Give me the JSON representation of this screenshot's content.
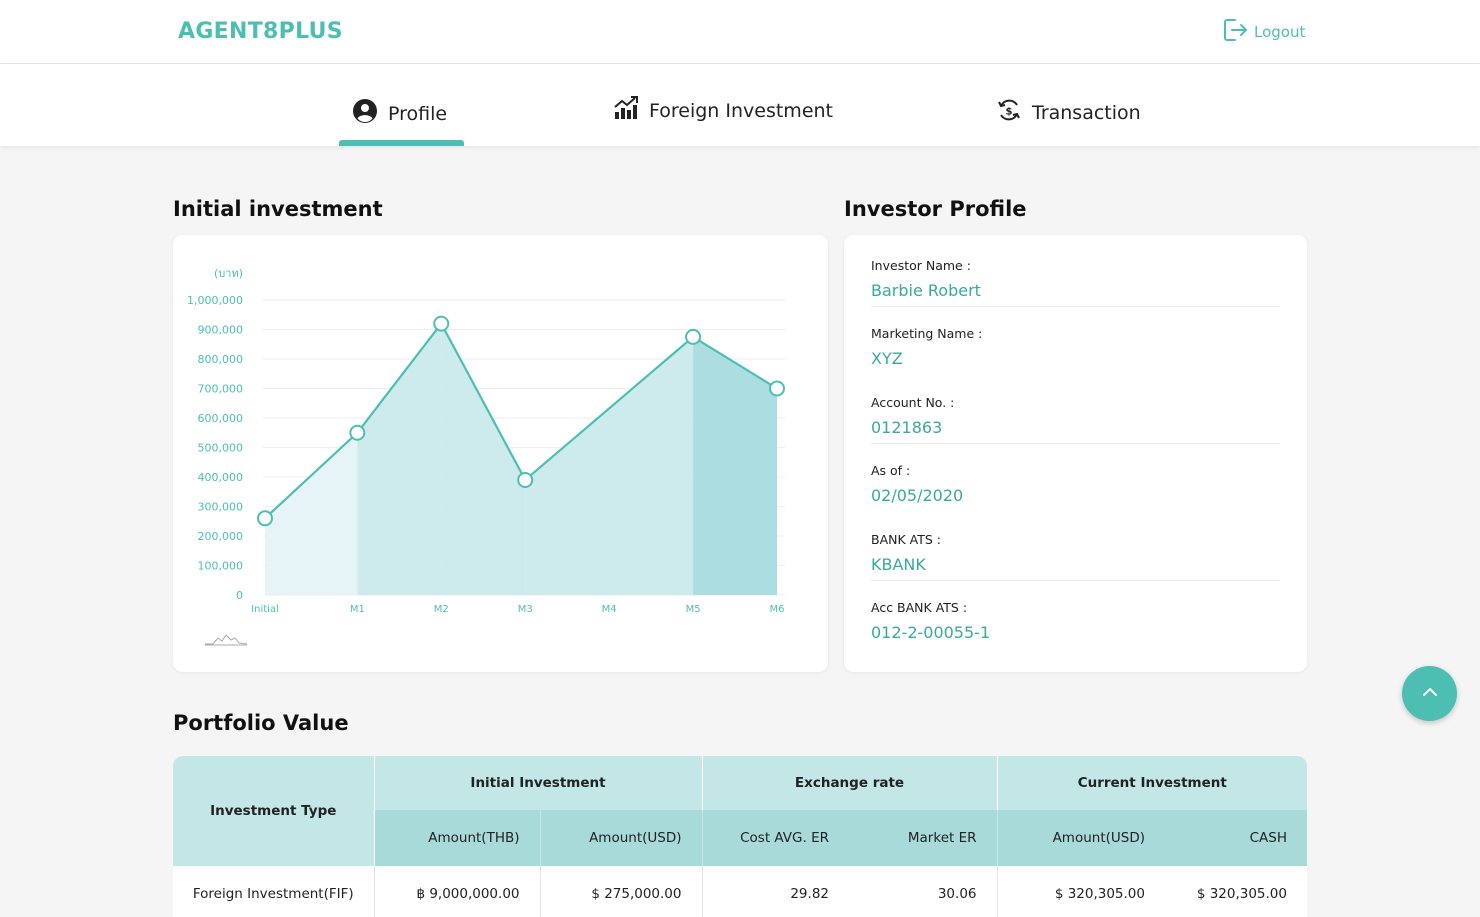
{
  "header": {
    "logo": "AGENT8PLUS",
    "logout_label": "Logout"
  },
  "tabs": [
    {
      "label": "Profile",
      "icon": "user-circle-icon",
      "active": true
    },
    {
      "label": "Foreign Investment",
      "icon": "growth-chart-icon",
      "active": false
    },
    {
      "label": "Transaction",
      "icon": "currency-exchange-icon",
      "active": false
    }
  ],
  "sections": {
    "initial_investment": "Initial investment",
    "investor_profile": "Investor Profile",
    "portfolio_value": "Portfolio Value"
  },
  "chart_data": {
    "type": "area",
    "unit_label": "(บาท)",
    "categories": [
      "Initial",
      "M1",
      "M2",
      "M3",
      "M4",
      "M5",
      "M6"
    ],
    "x": [
      0,
      1.1,
      2.1,
      3.1,
      4.1,
      5.1,
      6.1
    ],
    "values": [
      260000,
      550000,
      920000,
      390000,
      null,
      875000,
      700000
    ],
    "y_ticks": [
      "0",
      "100,000",
      "200,000",
      "300,000",
      "400,000",
      "500,000",
      "600,000",
      "700,000",
      "800,000",
      "900,000",
      "1,000,000"
    ],
    "ylim": [
      0,
      1000000
    ],
    "grid": true,
    "legend": "none",
    "color": "#4dbfb2"
  },
  "profile": {
    "fields": [
      {
        "label": "Investor Name :",
        "value": "Barbie Robert"
      },
      {
        "label": "Marketing Name :",
        "value": "XYZ"
      },
      {
        "label": "Account No. :",
        "value": "0121863"
      },
      {
        "label": "As of :",
        "value": "02/05/2020"
      },
      {
        "label": "BANK ATS :",
        "value": "KBANK"
      },
      {
        "label": "Acc BANK ATS :",
        "value": "012-2-00055-1"
      }
    ]
  },
  "portfolio": {
    "type_header": "Investment Type",
    "groups": [
      "Initial Investment",
      "Exchange rate",
      "Current Investment"
    ],
    "columns": [
      "Amount(THB)",
      "Amount(USD)",
      "Cost AVG. ER",
      "Market ER",
      "Amount(USD)",
      "CASH"
    ],
    "rows": [
      {
        "type": "Foreign Investment(FIF)",
        "cells": [
          "฿ 9,000,000.00",
          "$ 275,000.00",
          "29.82",
          "30.06",
          "$ 320,305.00",
          "$ 320,305.00"
        ]
      }
    ]
  }
}
